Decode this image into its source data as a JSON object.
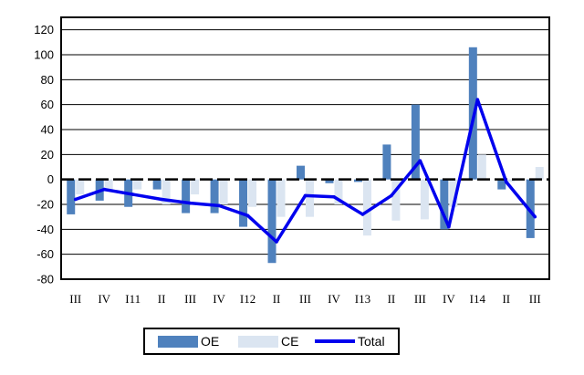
{
  "chart_data": {
    "type": "bar",
    "categories": [
      "III",
      "IV",
      "I11",
      "II",
      "III",
      "IV",
      "I12",
      "II",
      "III",
      "IV",
      "I13",
      "II",
      "III",
      "IV",
      "I14",
      "II",
      "III"
    ],
    "series": [
      {
        "name": "OE",
        "kind": "bar",
        "color": "#4f81bd",
        "values": [
          -28,
          -17,
          -22,
          -8,
          -27,
          -27,
          -38,
          -67,
          11,
          -3,
          -2,
          28,
          60,
          -40,
          106,
          -8,
          -47
        ]
      },
      {
        "name": "CE",
        "kind": "bar",
        "color": "#dbe5f1",
        "values": [
          -12,
          -8,
          -8,
          -20,
          -12,
          -20,
          -22,
          -30,
          -30,
          -20,
          -45,
          -33,
          -32,
          -22,
          20,
          -2,
          10
        ]
      },
      {
        "name": "Total",
        "kind": "line",
        "color": "#0000ee",
        "values": [
          -16,
          -8,
          -12,
          -16,
          -19,
          -21,
          -29,
          -50,
          -13,
          -14,
          -28,
          -13,
          15,
          -38,
          64,
          -2,
          -30
        ]
      }
    ],
    "yticks": [
      120,
      100,
      80,
      60,
      40,
      20,
      0,
      -20,
      -40,
      -60,
      -80
    ],
    "ylim": [
      -80,
      130
    ],
    "grid": true,
    "legend_position": "bottom"
  },
  "colors": {
    "oe": "#4f81bd",
    "ce": "#dbe5f1",
    "total": "#0000ee",
    "grid": "#000000"
  }
}
